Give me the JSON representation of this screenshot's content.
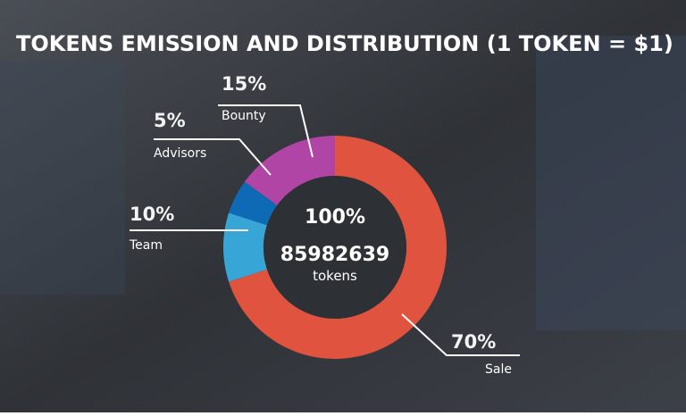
{
  "chart_data": {
    "type": "pie",
    "title": "TOKENS EMISSION AND DISTRIBUTION (1 TOKEN = $1)",
    "categories": [
      "Sale",
      "Team",
      "Advisors",
      "Bounty"
    ],
    "values": [
      70,
      10,
      5,
      15
    ],
    "value_labels": [
      "70%",
      "10%",
      "5%",
      "15%"
    ],
    "colors": [
      "#e0533f",
      "#37a6d6",
      "#0e6ab5",
      "#b045a6"
    ],
    "center_text": [
      "100%",
      "85982639",
      "tokens"
    ]
  }
}
